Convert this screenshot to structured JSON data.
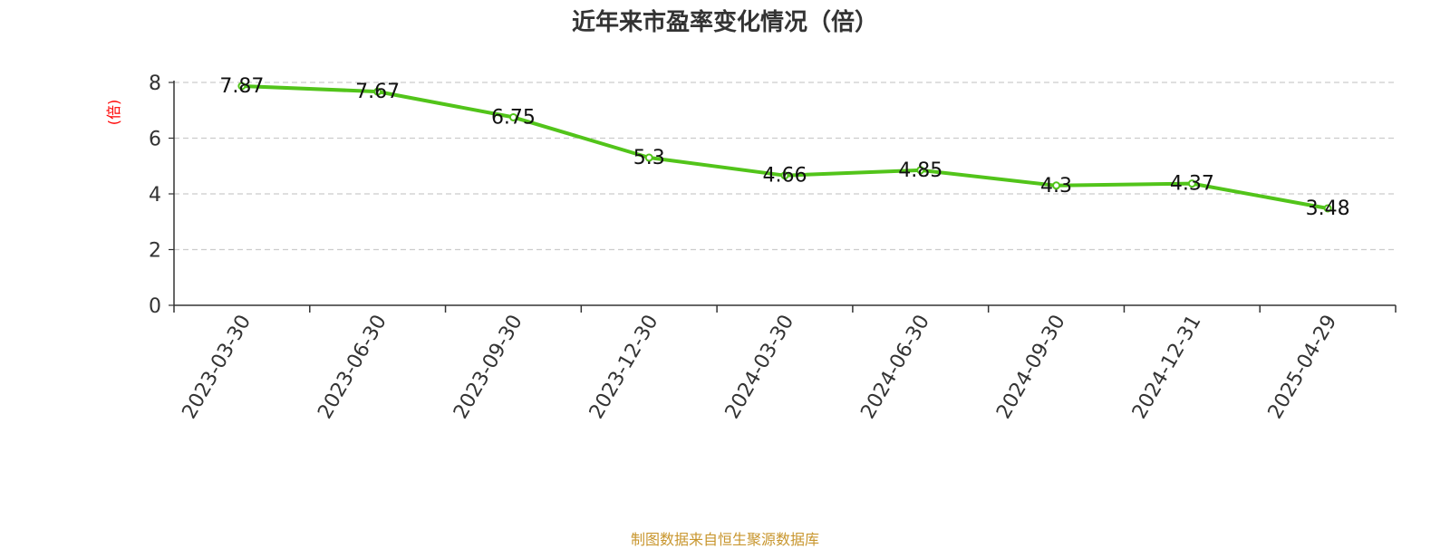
{
  "chart_data": {
    "type": "line",
    "title": "近年来市盈率变化情况（倍）",
    "ylabel": "(倍)",
    "xlabel": "",
    "categories": [
      "2023-03-30",
      "2023-06-30",
      "2023-09-30",
      "2023-12-30",
      "2024-03-30",
      "2024-06-30",
      "2024-09-30",
      "2024-12-31",
      "2025-04-29"
    ],
    "series": [
      {
        "values": [
          7.87,
          7.67,
          6.75,
          5.3,
          4.66,
          4.85,
          4.3,
          4.37,
          3.48
        ]
      }
    ],
    "data_labels": [
      "7.87",
      "7.67",
      "6.75",
      "5.3",
      "4.66",
      "4.85",
      "4.3",
      "4.37",
      "3.48"
    ],
    "yticks": [
      0,
      2,
      4,
      6,
      8
    ],
    "ylim": [
      0,
      8
    ],
    "grid": "horizontal dashed",
    "legend": "none"
  },
  "colors": {
    "line": "#52c41a",
    "ylabel": "#ff0000",
    "source": "#c8962e",
    "grid": "#cccccc"
  },
  "source_note": "制图数据来自恒生聚源数据库"
}
